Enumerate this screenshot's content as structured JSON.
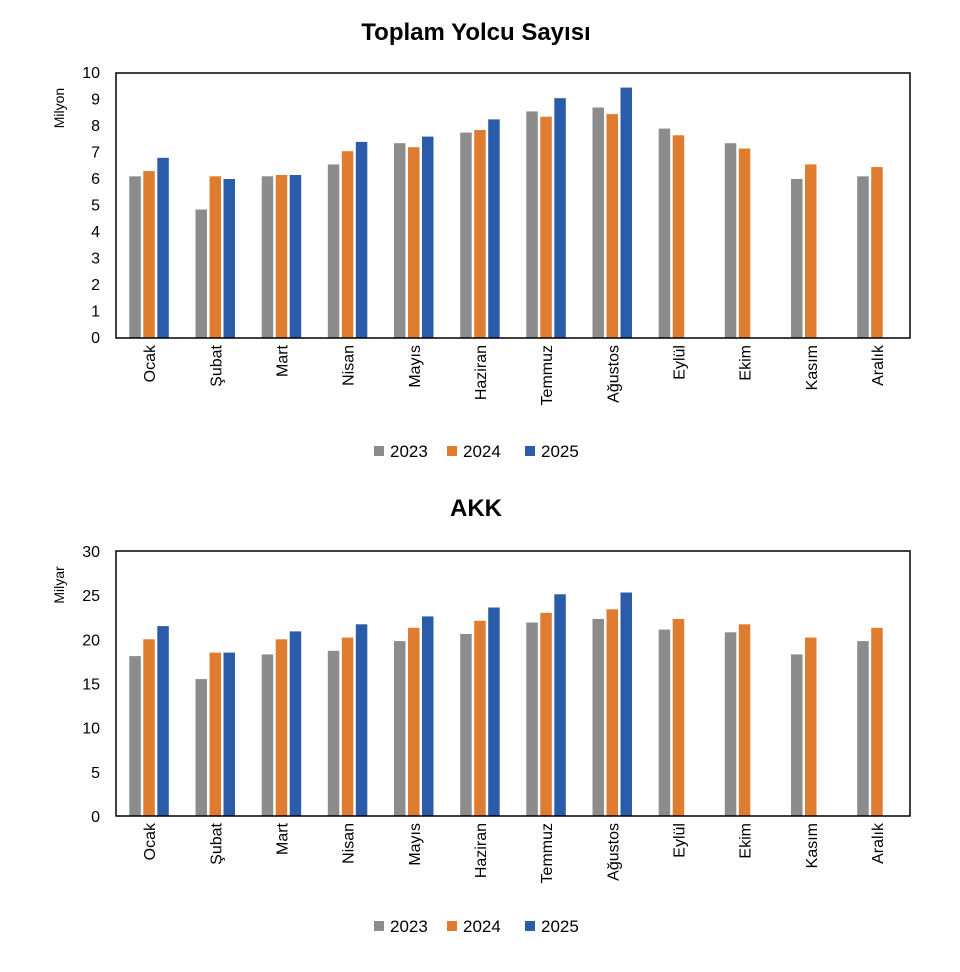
{
  "charts": [
    {
      "title": "Toplam Yolcu Sayısı",
      "ylabel": "Milyon",
      "legend": [
        "2023",
        "2024",
        "2025"
      ],
      "ticks": [
        "0",
        "1",
        "2",
        "3",
        "4",
        "5",
        "6",
        "7",
        "8",
        "9",
        "10"
      ]
    },
    {
      "title": "AKK",
      "ylabel": "Milyar",
      "legend": [
        "2023",
        "2024",
        "2025"
      ],
      "ticks": [
        "0",
        "5",
        "10",
        "15",
        "20",
        "25",
        "30"
      ]
    }
  ],
  "chart_data": [
    {
      "type": "bar",
      "title": "Toplam Yolcu Sayısı",
      "xlabel": "",
      "ylabel": "Milyon",
      "ylim": [
        0,
        10
      ],
      "y_ticks": [
        0,
        1,
        2,
        3,
        4,
        5,
        6,
        7,
        8,
        9,
        10
      ],
      "categories": [
        "Ocak",
        "Şubat",
        "Mart",
        "Nisan",
        "Mayıs",
        "Haziran",
        "Temmuz",
        "Ağustos",
        "Eylül",
        "Ekim",
        "Kasım",
        "Aralık"
      ],
      "series": [
        {
          "name": "2023",
          "color": "#8c8c8c",
          "values": [
            6.1,
            4.85,
            6.1,
            6.55,
            7.35,
            7.75,
            8.55,
            8.7,
            7.9,
            7.35,
            6.0,
            6.1
          ]
        },
        {
          "name": "2024",
          "color": "#e07c30",
          "values": [
            6.3,
            6.1,
            6.15,
            7.05,
            7.2,
            7.85,
            8.35,
            8.45,
            7.65,
            7.15,
            6.55,
            6.45
          ]
        },
        {
          "name": "2025",
          "color": "#2a5caa",
          "values": [
            6.8,
            6.0,
            6.15,
            7.4,
            7.6,
            8.25,
            9.05,
            9.45,
            null,
            null,
            null,
            null
          ]
        }
      ],
      "grid": false,
      "legend_position": "bottom"
    },
    {
      "type": "bar",
      "title": "AKK",
      "xlabel": "",
      "ylabel": "Milyar",
      "ylim": [
        0,
        30
      ],
      "y_ticks": [
        0,
        5,
        10,
        15,
        20,
        25,
        30
      ],
      "categories": [
        "Ocak",
        "Şubat",
        "Mart",
        "Nisan",
        "Mayıs",
        "Haziran",
        "Temmuz",
        "Ağustos",
        "Eylül",
        "Ekim",
        "Kasım",
        "Aralık"
      ],
      "series": [
        {
          "name": "2023",
          "color": "#8c8c8c",
          "values": [
            18.1,
            15.5,
            18.3,
            18.7,
            19.8,
            20.6,
            21.9,
            22.3,
            21.1,
            20.8,
            18.3,
            19.8
          ]
        },
        {
          "name": "2024",
          "color": "#e07c30",
          "values": [
            20.0,
            18.5,
            20.0,
            20.2,
            21.3,
            22.1,
            23.0,
            23.4,
            22.3,
            21.7,
            20.2,
            21.3
          ]
        },
        {
          "name": "2025",
          "color": "#2a5caa",
          "values": [
            21.5,
            18.5,
            20.9,
            21.7,
            22.6,
            23.6,
            25.1,
            25.3,
            null,
            null,
            null,
            null
          ]
        }
      ],
      "grid": false,
      "legend_position": "bottom"
    }
  ]
}
